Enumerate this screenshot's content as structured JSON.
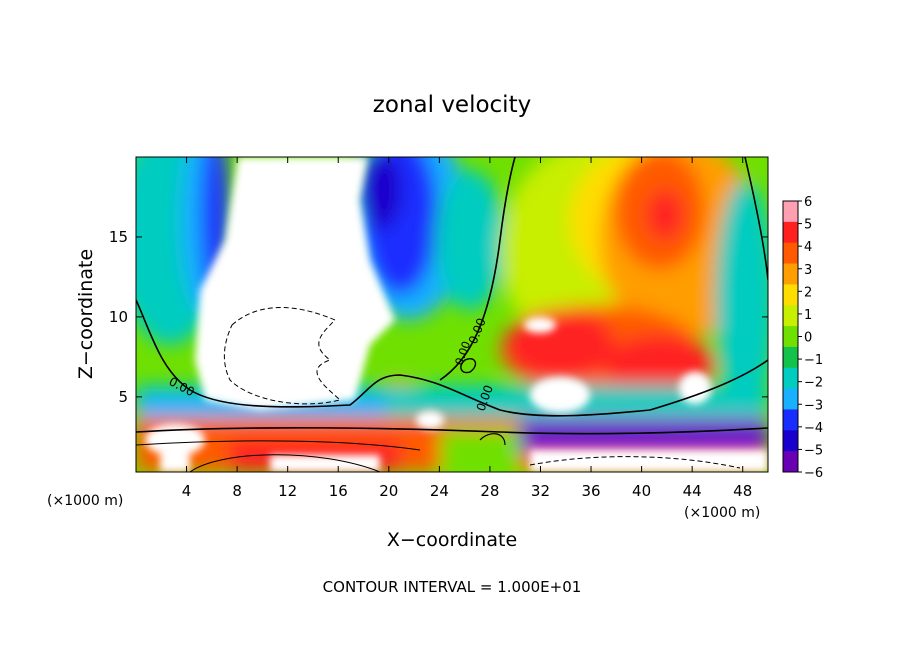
{
  "chart_data": {
    "type": "heatmap",
    "title": "zonal velocity",
    "xlabel": "X−coordinate",
    "ylabel": "Z−coordinate",
    "x_unit_left": "(×1000 m)",
    "x_unit_right": "(×1000 m)",
    "footer": "CONTOUR INTERVAL = 1.000E+01",
    "x_ticks": [
      "4",
      "8",
      "12",
      "16",
      "20",
      "24",
      "28",
      "32",
      "36",
      "40",
      "44",
      "48"
    ],
    "x_tick_values": [
      4,
      8,
      12,
      16,
      20,
      24,
      28,
      32,
      36,
      40,
      44,
      48
    ],
    "y_ticks": [
      "5",
      "10",
      "15"
    ],
    "y_tick_values": [
      5,
      10,
      15
    ],
    "xlim": [
      0,
      50
    ],
    "ylim": [
      0.3,
      20
    ],
    "colorbar": {
      "range": [
        -6,
        6
      ],
      "tick_labels": [
        "6",
        "5",
        "4",
        "3",
        "2",
        "1",
        "0",
        "−1",
        "−2",
        "−3",
        "−4",
        "−5",
        "−6"
      ],
      "tick_values": [
        6,
        5,
        4,
        3,
        2,
        1,
        0,
        -1,
        -2,
        -3,
        -4,
        -5,
        -6
      ],
      "colors": [
        "#ff9fb2",
        "#ff2020",
        "#ff5a00",
        "#ff9e00",
        "#ffdd00",
        "#c8ee00",
        "#6fe000",
        "#12c24a",
        "#00ccc0",
        "#18b0ff",
        "#1a2dff",
        "#1a00cc",
        "#6a00b4"
      ]
    },
    "contour_labels": [
      "0.00",
      "0.00",
      "0.00",
      "0.00"
    ]
  }
}
